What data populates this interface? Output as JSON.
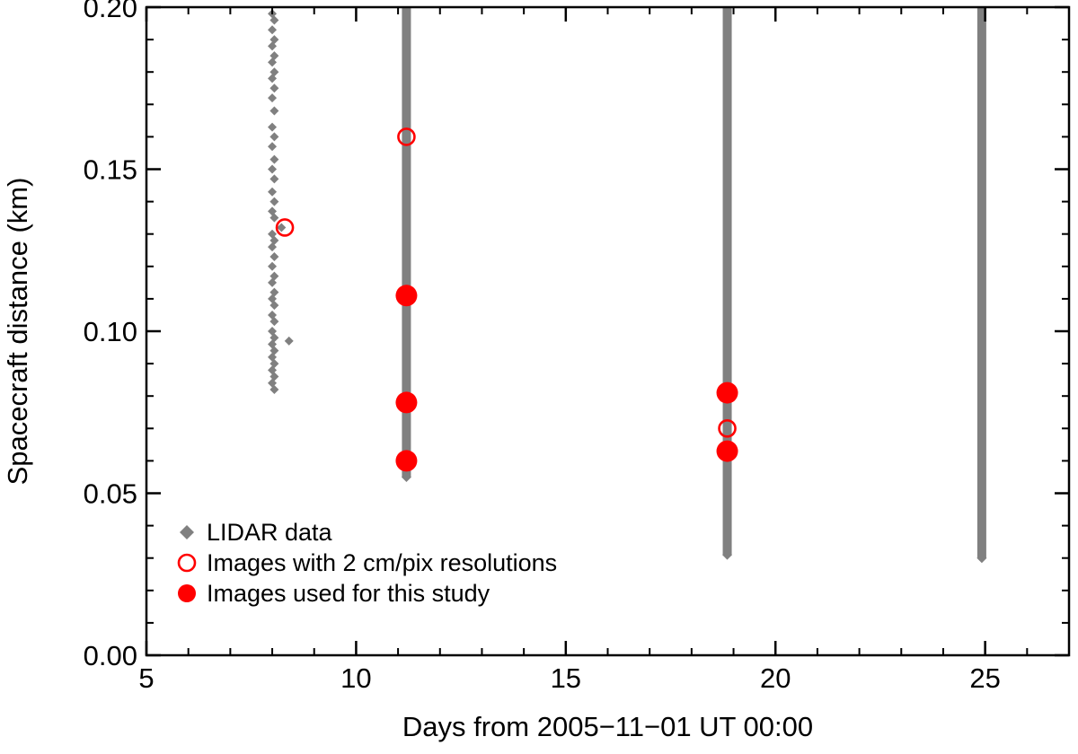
{
  "chart_data": {
    "type": "scatter",
    "xlabel": "Days from 2005−11−01 UT 00:00",
    "ylabel": "Spacecraft distance (km)",
    "xlim": [
      5,
      27
    ],
    "ylim": [
      0.0,
      0.2
    ],
    "x_ticks": [
      5,
      10,
      15,
      20,
      25
    ],
    "x_tick_labels": [
      "5",
      "10",
      "15",
      "20",
      "25"
    ],
    "y_ticks": [
      0.0,
      0.05,
      0.1,
      0.15,
      0.2
    ],
    "y_tick_labels": [
      "0.00",
      "0.05",
      "0.10",
      "0.15",
      "0.20"
    ],
    "grid": false,
    "legend_position": "bottom-left",
    "series": [
      {
        "name": "LIDAR data",
        "marker": "diamond",
        "color": "#808080",
        "dense_ranges": [
          {
            "x": 11.2,
            "ymin": 0.055,
            "ymax": 0.2
          },
          {
            "x": 18.85,
            "ymin": 0.031,
            "ymax": 0.2
          },
          {
            "x": 24.92,
            "ymin": 0.03,
            "ymax": 0.2
          }
        ],
        "points": [
          {
            "x": 8.0,
            "y": 0.198
          },
          {
            "x": 8.05,
            "y": 0.196
          },
          {
            "x": 8.0,
            "y": 0.193
          },
          {
            "x": 8.05,
            "y": 0.19
          },
          {
            "x": 8.0,
            "y": 0.188
          },
          {
            "x": 8.05,
            "y": 0.185
          },
          {
            "x": 8.0,
            "y": 0.183
          },
          {
            "x": 8.05,
            "y": 0.18
          },
          {
            "x": 8.0,
            "y": 0.178
          },
          {
            "x": 8.05,
            "y": 0.175
          },
          {
            "x": 8.0,
            "y": 0.172
          },
          {
            "x": 8.05,
            "y": 0.168
          },
          {
            "x": 8.0,
            "y": 0.163
          },
          {
            "x": 8.05,
            "y": 0.16
          },
          {
            "x": 8.0,
            "y": 0.157
          },
          {
            "x": 8.05,
            "y": 0.153
          },
          {
            "x": 8.0,
            "y": 0.15
          },
          {
            "x": 8.05,
            "y": 0.147
          },
          {
            "x": 8.0,
            "y": 0.143
          },
          {
            "x": 8.05,
            "y": 0.14
          },
          {
            "x": 8.0,
            "y": 0.137
          },
          {
            "x": 8.05,
            "y": 0.135
          },
          {
            "x": 8.22,
            "y": 0.132
          },
          {
            "x": 8.0,
            "y": 0.13
          },
          {
            "x": 8.05,
            "y": 0.128
          },
          {
            "x": 8.0,
            "y": 0.126
          },
          {
            "x": 8.05,
            "y": 0.123
          },
          {
            "x": 8.0,
            "y": 0.12
          },
          {
            "x": 8.05,
            "y": 0.117
          },
          {
            "x": 8.0,
            "y": 0.115
          },
          {
            "x": 8.05,
            "y": 0.112
          },
          {
            "x": 8.0,
            "y": 0.11
          },
          {
            "x": 8.05,
            "y": 0.108
          },
          {
            "x": 8.0,
            "y": 0.105
          },
          {
            "x": 8.05,
            "y": 0.103
          },
          {
            "x": 8.0,
            "y": 0.1
          },
          {
            "x": 8.05,
            "y": 0.098
          },
          {
            "x": 8.0,
            "y": 0.096
          },
          {
            "x": 8.4,
            "y": 0.097
          },
          {
            "x": 8.05,
            "y": 0.094
          },
          {
            "x": 8.0,
            "y": 0.092
          },
          {
            "x": 8.05,
            "y": 0.09
          },
          {
            "x": 8.0,
            "y": 0.088
          },
          {
            "x": 8.05,
            "y": 0.086
          },
          {
            "x": 8.0,
            "y": 0.084
          },
          {
            "x": 8.05,
            "y": 0.082
          }
        ]
      },
      {
        "name": "Images with 2 cm/pix resolutions",
        "marker": "open-circle",
        "color": "#ff0000",
        "points": [
          {
            "x": 8.3,
            "y": 0.132
          },
          {
            "x": 11.2,
            "y": 0.16
          },
          {
            "x": 18.85,
            "y": 0.07
          }
        ]
      },
      {
        "name": "Images used for this study",
        "marker": "filled-circle",
        "color": "#ff0000",
        "points": [
          {
            "x": 11.2,
            "y": 0.111
          },
          {
            "x": 11.2,
            "y": 0.078
          },
          {
            "x": 11.2,
            "y": 0.06
          },
          {
            "x": 18.85,
            "y": 0.081
          },
          {
            "x": 18.85,
            "y": 0.063
          }
        ]
      }
    ]
  }
}
